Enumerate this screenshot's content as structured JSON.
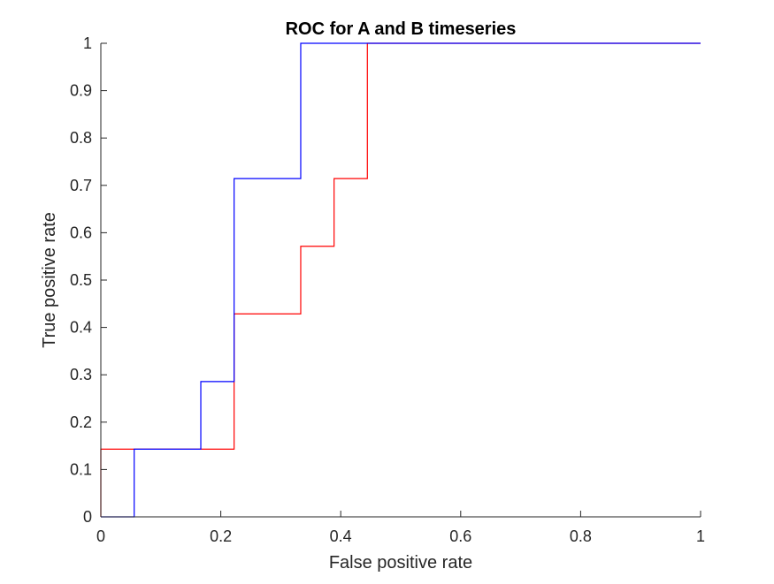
{
  "chart_data": {
    "type": "line",
    "title": "ROC for A and B timeseries",
    "xlabel": "False positive rate",
    "ylabel": "True positive rate",
    "xlim": [
      0,
      1
    ],
    "ylim": [
      0,
      1
    ],
    "grid": false,
    "legend": "none",
    "x_ticks": [
      "0",
      "0.2",
      "0.4",
      "0.6",
      "0.8",
      "1"
    ],
    "y_ticks": [
      "0",
      "0.1",
      "0.2",
      "0.3",
      "0.4",
      "0.5",
      "0.6",
      "0.7",
      "0.8",
      "0.9",
      "1"
    ],
    "series": [
      {
        "color": "#ff0000",
        "style": "step",
        "x": [
          0,
          0,
          0.0556,
          0.0556,
          0.1667,
          0.1667,
          0.2222,
          0.2222,
          0.3333,
          0.3333,
          0.3889,
          0.3889,
          0.4444,
          0.4444,
          1
        ],
        "y": [
          0,
          0.1429,
          0.1429,
          0.1429,
          0.1429,
          0.1429,
          0.1429,
          0.4286,
          0.4286,
          0.5714,
          0.5714,
          0.7143,
          0.7143,
          1,
          1
        ]
      },
      {
        "color": "#0000ff",
        "style": "step",
        "x": [
          0,
          0.0556,
          0.0556,
          0.1667,
          0.1667,
          0.2222,
          0.2222,
          0.3333,
          0.3333,
          1
        ],
        "y": [
          0,
          0,
          0.1429,
          0.1429,
          0.2857,
          0.2857,
          0.7143,
          0.7143,
          1,
          1
        ]
      }
    ]
  }
}
